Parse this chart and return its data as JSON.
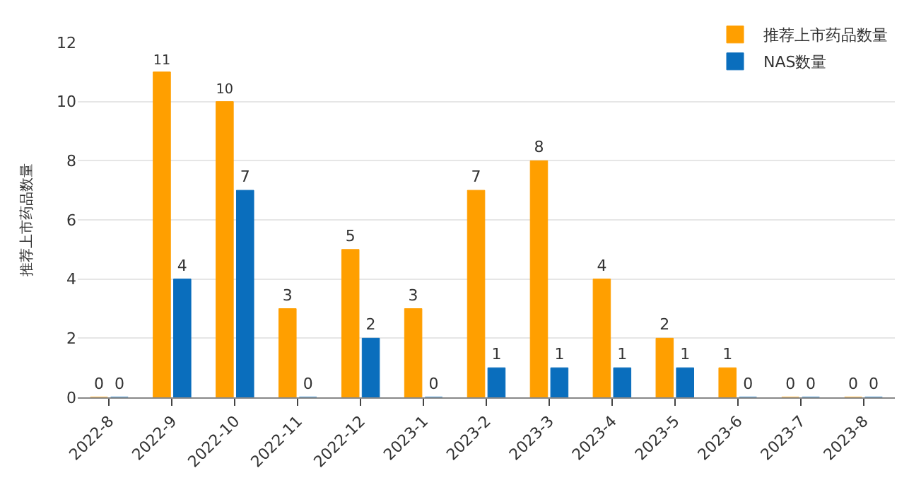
{
  "chart_data": {
    "type": "bar",
    "ylabel": "推荐上市药品数量",
    "categories": [
      "2022-8",
      "2022-9",
      "2022-10",
      "2022-11",
      "2022-12",
      "2023-1",
      "2023-2",
      "2023-3",
      "2023-4",
      "2023-5",
      "2023-6",
      "2023-7",
      "2023-8"
    ],
    "series": [
      {
        "name": "推荐上市药品数量",
        "color": "#ff9f00",
        "values": [
          0,
          11,
          10,
          3,
          5,
          3,
          7,
          8,
          4,
          2,
          1,
          0,
          0
        ]
      },
      {
        "name": "NAS数量",
        "color": "#0a6ebd",
        "values": [
          0,
          4,
          7,
          0,
          2,
          0,
          1,
          1,
          1,
          1,
          0,
          0,
          0
        ]
      }
    ],
    "ylim": [
      0,
      12
    ],
    "yticks": [
      0,
      2,
      4,
      6,
      8,
      10,
      12
    ],
    "grid": "y",
    "legend": "top right",
    "data_labels": true
  }
}
